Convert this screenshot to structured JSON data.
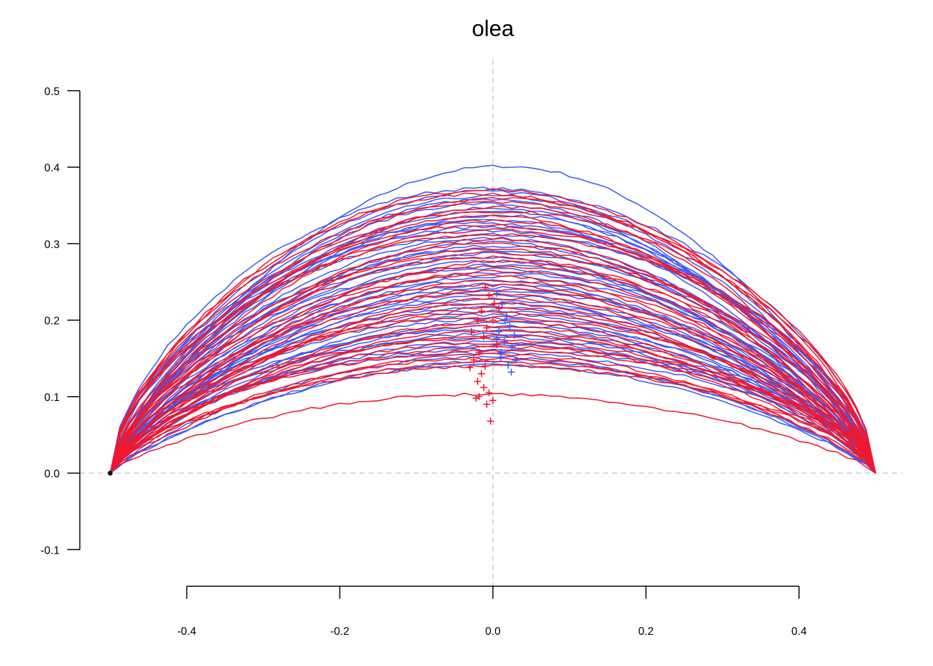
{
  "chart_data": {
    "type": "line",
    "title": "olea",
    "xlabel": "",
    "ylabel": "",
    "xlim": [
      -0.5,
      0.5
    ],
    "ylim": [
      -0.1,
      0.5
    ],
    "x_ticks": [
      "-0.4",
      "-0.2",
      "0.0",
      "0.2",
      "0.4"
    ],
    "x_tick_values": [
      -0.4,
      -0.2,
      0.0,
      0.2,
      0.4
    ],
    "y_ticks": [
      "-0.1",
      "0.0",
      "0.1",
      "0.2",
      "0.3",
      "0.4",
      "0.5"
    ],
    "y_tick_values": [
      -0.1,
      0.0,
      0.1,
      0.2,
      0.3,
      0.4,
      0.5
    ],
    "reference_lines": {
      "x": 0.0,
      "y": 0.0,
      "style": "dashed",
      "color": "#c8c8c8"
    },
    "grid": false,
    "legend": "none",
    "colors": {
      "group_1": "#3b5cf5",
      "group_2": "#f0182e"
    },
    "series": [
      {
        "color": "#3b5cf5",
        "curve_heights": [
          0.401,
          0.372,
          0.368,
          0.362,
          0.357,
          0.352,
          0.347,
          0.342,
          0.337,
          0.332,
          0.327,
          0.322,
          0.317,
          0.312,
          0.307,
          0.302,
          0.297,
          0.292,
          0.287,
          0.282,
          0.277,
          0.272,
          0.267,
          0.262,
          0.257,
          0.252,
          0.247,
          0.242,
          0.237,
          0.232,
          0.227,
          0.222,
          0.217,
          0.212,
          0.207,
          0.202,
          0.197,
          0.192,
          0.187,
          0.182,
          0.177,
          0.172,
          0.167,
          0.162,
          0.157,
          0.152,
          0.147,
          0.142
        ],
        "centroids": [
          [
            0.005,
            0.235
          ],
          [
            0.012,
            0.221
          ],
          [
            0.018,
            0.205
          ],
          [
            0.022,
            0.192
          ],
          [
            0.008,
            0.185
          ],
          [
            0.015,
            0.172
          ],
          [
            0.025,
            0.165
          ],
          [
            0.011,
            0.158
          ],
          [
            0.03,
            0.148
          ],
          [
            0.02,
            0.141
          ],
          [
            0.01,
            0.15
          ],
          [
            0.024,
            0.132
          ],
          [
            0.005,
            0.176
          ],
          [
            0.016,
            0.199
          ],
          [
            0.028,
            0.18
          ]
        ]
      },
      {
        "color": "#f0182e",
        "curve_heights": [
          0.37,
          0.365,
          0.36,
          0.354,
          0.348,
          0.342,
          0.336,
          0.33,
          0.324,
          0.318,
          0.312,
          0.306,
          0.3,
          0.294,
          0.288,
          0.282,
          0.276,
          0.27,
          0.264,
          0.258,
          0.252,
          0.246,
          0.24,
          0.234,
          0.228,
          0.222,
          0.216,
          0.21,
          0.204,
          0.198,
          0.192,
          0.186,
          0.18,
          0.175,
          0.17,
          0.165,
          0.16,
          0.155,
          0.15,
          0.145,
          0.14,
          0.103
        ],
        "centroids": [
          [
            -0.01,
            0.243
          ],
          [
            -0.005,
            0.232
          ],
          [
            0.002,
            0.222
          ],
          [
            -0.015,
            0.212
          ],
          [
            -0.02,
            0.2
          ],
          [
            -0.008,
            0.19
          ],
          [
            -0.012,
            0.178
          ],
          [
            0.005,
            0.168
          ],
          [
            -0.018,
            0.158
          ],
          [
            -0.025,
            0.148
          ],
          [
            -0.01,
            0.14
          ],
          [
            -0.015,
            0.13
          ],
          [
            -0.02,
            0.12
          ],
          [
            -0.012,
            0.112
          ],
          [
            -0.005,
            0.105
          ],
          [
            -0.022,
            0.098
          ],
          [
            0.0,
            0.095
          ],
          [
            -0.008,
            0.09
          ],
          [
            -0.003,
            0.068
          ],
          [
            0.008,
            0.215
          ],
          [
            -0.028,
            0.185
          ],
          [
            0.0,
            0.2
          ],
          [
            -0.03,
            0.138
          ],
          [
            -0.018,
            0.1
          ]
        ]
      }
    ],
    "start_point": [
      -0.5,
      0.0
    ]
  }
}
